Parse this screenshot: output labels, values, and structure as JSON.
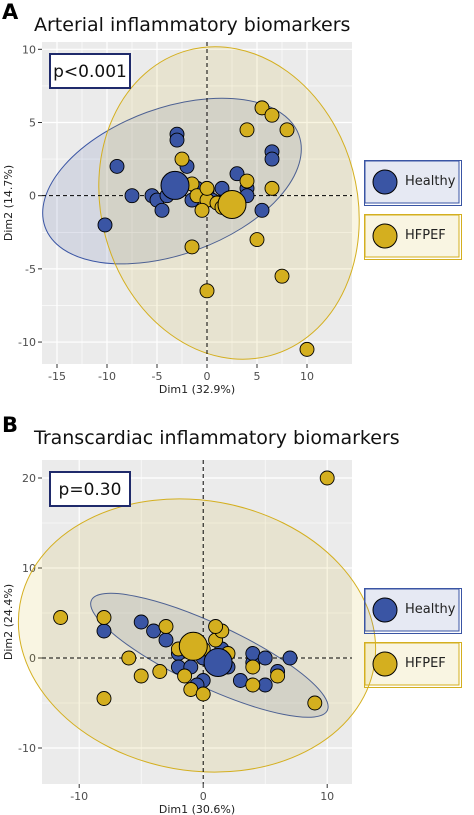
{
  "colors": {
    "healthy": "#3A55A4",
    "hfpef": "#D4AF1F",
    "panel_bg": "#EBEBEB",
    "grid": "#FFFFFF",
    "pbox_border": "#1F2A6B"
  },
  "chart_data": [
    {
      "panel": "A",
      "type": "scatter",
      "title": "Arterial inflammatory biomarkers",
      "xlabel": "Dim1 (32.9%)",
      "ylabel": "Dim2 (14.7%)",
      "xlim": [
        -16.5,
        14.5
      ],
      "ylim": [
        -11.5,
        10.5
      ],
      "xticks": [
        -15,
        -10,
        -5,
        0,
        5,
        10
      ],
      "yticks": [
        -10,
        -5,
        0,
        5,
        10
      ],
      "annotation": "p<0.001",
      "legend": {
        "position": "right",
        "entries": [
          "Healthy",
          "HFPEF"
        ]
      },
      "series": [
        {
          "name": "Healthy",
          "color": "#3A55A4",
          "points": [
            [
              -9,
              2
            ],
            [
              -10.2,
              -2
            ],
            [
              -7.5,
              0
            ],
            [
              -5.5,
              0
            ],
            [
              -5,
              -0.3
            ],
            [
              -4,
              0
            ],
            [
              -3,
              4.2
            ],
            [
              -3,
              3.8
            ],
            [
              -2,
              2
            ],
            [
              -1.5,
              -0.3
            ],
            [
              -1,
              0.5
            ],
            [
              0,
              0.3
            ],
            [
              0.5,
              -0.3
            ],
            [
              1.5,
              0.5
            ],
            [
              3,
              1.5
            ],
            [
              4,
              0.5
            ],
            [
              6.5,
              3
            ],
            [
              6.5,
              2.5
            ],
            [
              5.5,
              -1
            ],
            [
              4,
              0
            ],
            [
              -4.5,
              -1
            ]
          ],
          "centroid": [
            -3.2,
            0.7
          ],
          "ellipse": {
            "center": [
              -3.5,
              1.0
            ],
            "rx": 13.5,
            "ry": 5.0,
            "angle_deg": 20
          }
        },
        {
          "name": "HFPEF",
          "color": "#D4AF1F",
          "points": [
            [
              -2.5,
              2.5
            ],
            [
              -1.5,
              0.8
            ],
            [
              -1,
              0
            ],
            [
              0,
              -0.3
            ],
            [
              0,
              0.5
            ],
            [
              -0.5,
              -1
            ],
            [
              1,
              -0.5
            ],
            [
              1.5,
              -0.8
            ],
            [
              -1.5,
              -3.5
            ],
            [
              0,
              -6.5
            ],
            [
              4,
              4.5
            ],
            [
              4,
              1
            ],
            [
              5.5,
              6
            ],
            [
              6.5,
              5.5
            ],
            [
              8,
              4.5
            ],
            [
              6.5,
              0.5
            ],
            [
              5,
              -3
            ],
            [
              7.5,
              -5.5
            ],
            [
              10,
              -10.5
            ]
          ],
          "centroid": [
            2.5,
            -0.6
          ],
          "ellipse": {
            "center": [
              2.2,
              -0.5
            ],
            "rx": 12.8,
            "ry": 10.8,
            "angle_deg": 15
          }
        }
      ]
    },
    {
      "panel": "B",
      "type": "scatter",
      "title": "Transcardiac inflammatory biomarkers",
      "xlabel": "Dim1 (30.6%)",
      "ylabel": "Dim2 (24.4%)",
      "xlim": [
        -13,
        12
      ],
      "ylim": [
        -14,
        22
      ],
      "xticks": [
        -10,
        0,
        10
      ],
      "yticks": [
        -10,
        0,
        10,
        20
      ],
      "annotation": "p=0.30",
      "legend": {
        "position": "right",
        "entries": [
          "Healthy",
          "HFPEF"
        ]
      },
      "series": [
        {
          "name": "Healthy",
          "color": "#3A55A4",
          "points": [
            [
              -8,
              3
            ],
            [
              -5,
              4
            ],
            [
              -4,
              3
            ],
            [
              -3,
              2
            ],
            [
              -2,
              0.5
            ],
            [
              -2,
              -1
            ],
            [
              -1,
              2
            ],
            [
              -1,
              -1
            ],
            [
              0,
              0
            ],
            [
              0,
              -2.5
            ],
            [
              1,
              -1
            ],
            [
              1.5,
              1
            ],
            [
              2,
              -1
            ],
            [
              3,
              -2.5
            ],
            [
              4,
              -0.5
            ],
            [
              4,
              0.5
            ],
            [
              5,
              0
            ],
            [
              5,
              -3
            ],
            [
              6,
              -1.5
            ],
            [
              7,
              0
            ],
            [
              -0.5,
              -3
            ]
          ],
          "centroid": [
            1.2,
            -0.5
          ],
          "ellipse": {
            "center": [
              0.5,
              0.3
            ],
            "rx": 10.5,
            "ry": 3.5,
            "angle_deg": -25
          }
        },
        {
          "name": "HFPEF",
          "color": "#D4AF1F",
          "points": [
            [
              -11.5,
              4.5
            ],
            [
              -8,
              4.5
            ],
            [
              -8,
              -4.5
            ],
            [
              -6,
              0
            ],
            [
              -5,
              -2
            ],
            [
              -3,
              3.5
            ],
            [
              -3.5,
              -1.5
            ],
            [
              -2,
              1
            ],
            [
              -1.5,
              -2
            ],
            [
              -1,
              -3.5
            ],
            [
              0,
              1
            ],
            [
              0,
              -4
            ],
            [
              1,
              2
            ],
            [
              1.5,
              3
            ],
            [
              1,
              3.5
            ],
            [
              2,
              0.5
            ],
            [
              4,
              -1
            ],
            [
              6,
              -2
            ],
            [
              9,
              -5
            ],
            [
              10,
              20
            ],
            [
              4,
              -3
            ]
          ],
          "centroid": [
            -0.8,
            1.3
          ],
          "ellipse": {
            "center": [
              -0.5,
              2.5
            ],
            "rx": 14.5,
            "ry": 15.0,
            "angle_deg": -10
          }
        }
      ]
    }
  ]
}
